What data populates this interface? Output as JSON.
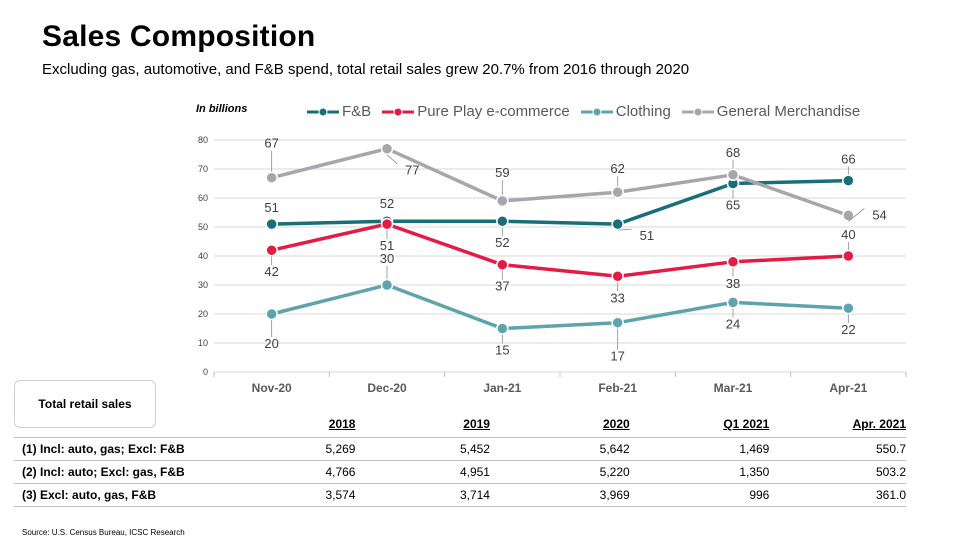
{
  "title": "Sales Composition",
  "subtitle": "Excluding gas, automotive, and F&B spend, total retail sales grew 20.7% from 2016 through 2020",
  "units_label": "In billions",
  "chart_data": {
    "type": "line",
    "categories": [
      "Nov-20",
      "Dec-20",
      "Jan-21",
      "Feb-21",
      "Mar-21",
      "Apr-21"
    ],
    "ylim": [
      0,
      80
    ],
    "yticks": [
      0,
      10,
      20,
      30,
      40,
      50,
      60,
      70,
      80
    ],
    "grid": true,
    "legend_position": "top",
    "series": [
      {
        "name": "F&B",
        "color": "#1A6E7A",
        "values": [
          51,
          52,
          52,
          51,
          65,
          66
        ]
      },
      {
        "name": "Pure Play e-commerce",
        "color": "#E31B45",
        "values": [
          42,
          51,
          37,
          33,
          38,
          40
        ]
      },
      {
        "name": "Clothing",
        "color": "#5FA3AD",
        "values": [
          20,
          30,
          15,
          17,
          24,
          22
        ]
      },
      {
        "name": "General Merchandise",
        "color": "#A8A5AD",
        "values": [
          67,
          77,
          59,
          62,
          68,
          54
        ]
      }
    ]
  },
  "table": {
    "box_label": "Total retail sales",
    "headers": [
      "2018",
      "2019",
      "2020",
      "Q1 2021",
      "Apr. 2021"
    ],
    "rows": [
      {
        "label": "(1) Incl: auto, gas; Excl: F&B",
        "values": [
          "5,269",
          "5,452",
          "5,642",
          "1,469",
          "550.7"
        ]
      },
      {
        "label": "(2) Incl: auto; Excl: gas, F&B",
        "values": [
          "4,766",
          "4,951",
          "5,220",
          "1,350",
          "503.2"
        ]
      },
      {
        "label": "(3) Excl: auto, gas, F&B",
        "values": [
          "3,574",
          "3,714",
          "3,969",
          "996",
          "361.0"
        ]
      }
    ]
  },
  "source": "Source: U.S. Census Bureau,  ICSC Research"
}
